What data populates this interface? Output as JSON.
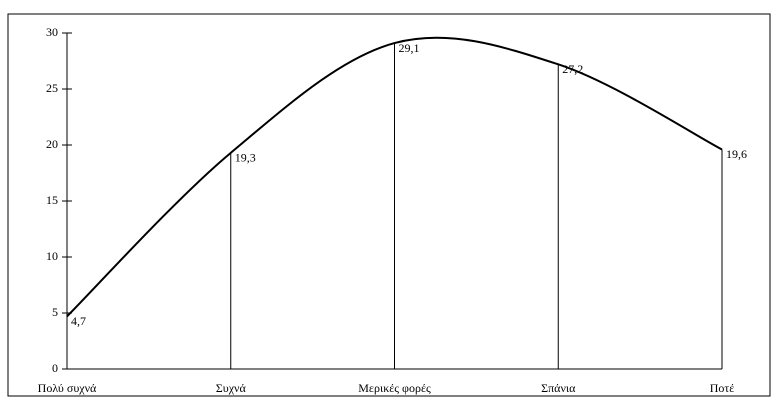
{
  "chart_data": {
    "type": "line",
    "categories": [
      "Πολύ συχνά",
      "Συχνά",
      "Μερικές φορές",
      "Σπάνια",
      "Ποτέ"
    ],
    "values": [
      4.7,
      19.3,
      29.1,
      27.2,
      19.6
    ],
    "value_labels": [
      "4,7",
      "19,3",
      "29,1",
      "27,2",
      "19,6"
    ],
    "color": "#000000",
    "ylim": [
      0,
      30
    ],
    "yticks": [
      0,
      5,
      10,
      15,
      20,
      25,
      30
    ],
    "drop_lines": true,
    "smooth": true
  }
}
